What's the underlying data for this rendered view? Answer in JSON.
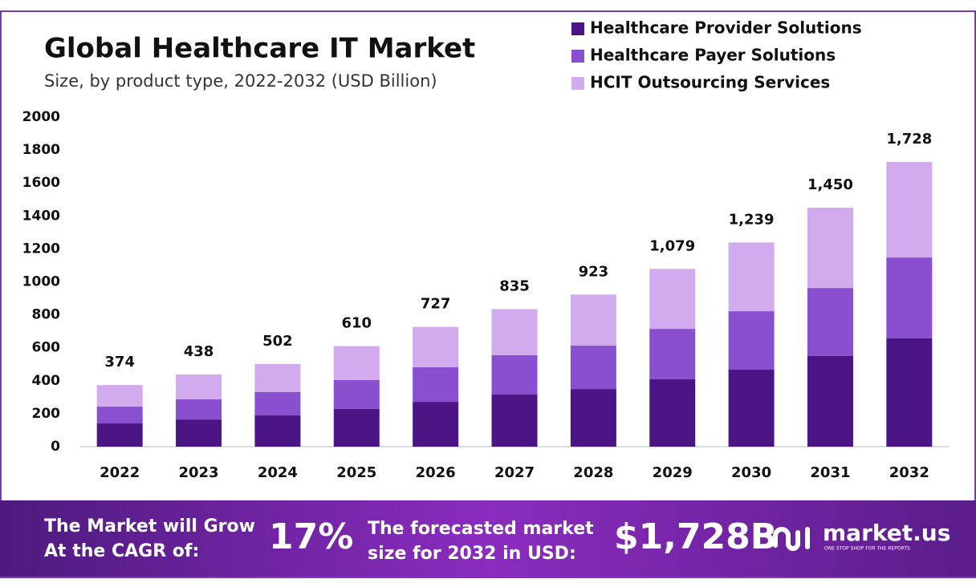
{
  "chart_data": {
    "type": "stacked_bar",
    "title": "Global Healthcare IT Market",
    "subtitle": "Size, by product type, 2022-2032 (USD Billion)",
    "categories": [
      "2022",
      "2023",
      "2024",
      "2025",
      "2026",
      "2027",
      "2028",
      "2029",
      "2030",
      "2031",
      "2032"
    ],
    "series": [
      {
        "name": "Healthcare Provider Solutions",
        "color": "#4b1585",
        "values": [
          141,
          165,
          190,
          229,
          272,
          316,
          350,
          409,
          467,
          550,
          657
        ]
      },
      {
        "name": "Healthcare Payer Solutions",
        "color": "#8a4fcf",
        "values": [
          102,
          122,
          141,
          175,
          210,
          239,
          263,
          306,
          355,
          413,
          491
        ]
      },
      {
        "name": "HCIT Outsourcing Services",
        "color": "#d1abee",
        "values": [
          131,
          151,
          171,
          206,
          245,
          280,
          310,
          364,
          417,
          487,
          580
        ]
      }
    ],
    "totals": {
      "values": [
        374,
        438,
        502,
        610,
        727,
        835,
        923,
        1079,
        1239,
        1450,
        1728
      ],
      "value_labels": [
        "374",
        "438",
        "502",
        "610",
        "727",
        "835",
        "923",
        "1,079",
        "1,239",
        "1,450",
        "1,728"
      ]
    },
    "ylim": [
      0,
      2000
    ],
    "yticks": [
      0,
      200,
      400,
      600,
      800,
      1000,
      1200,
      1400,
      1600,
      1800,
      2000
    ],
    "grid": false,
    "legend": "top-right"
  },
  "footer": {
    "cagr_text": [
      "The Market will Grow",
      "At the CAGR of:"
    ],
    "cagr": "17%",
    "forecast_text": [
      "The forecasted market",
      "size for 2032 in USD:"
    ],
    "forecast": "$1,728B",
    "brand": "market.us",
    "tagline": "ONE STOP SHOP FOR THE REPORTS"
  }
}
